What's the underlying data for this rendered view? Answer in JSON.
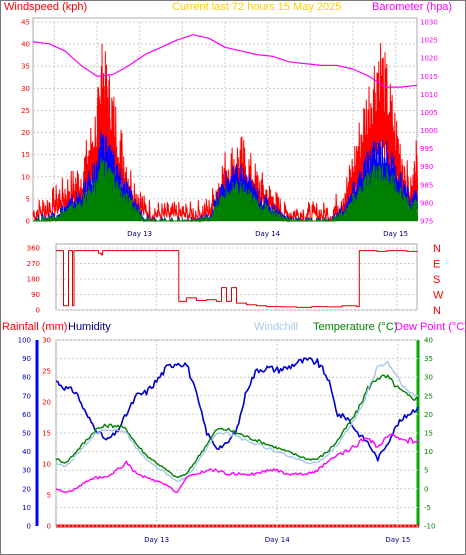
{
  "chart_data": [
    {
      "type": "line",
      "title": "Current last 72 hours 15 May 2025",
      "left_label": "Windspeed (kph)",
      "right_label": "Barometer (hpa)",
      "left_ticks": [
        "0",
        "5",
        "10",
        "15",
        "20",
        "25",
        "30",
        "35",
        "40",
        "45"
      ],
      "right_ticks": [
        "975",
        "980",
        "985",
        "990",
        "995",
        "1000",
        "1005",
        "1010",
        "1015",
        "1020",
        "1025",
        "1030"
      ],
      "ylim_left": [
        0,
        45
      ],
      "ylim_right": [
        975,
        1030
      ],
      "grid": true,
      "series": [
        {
          "name": "Windspeed (kph)",
          "color": "#ff0000",
          "role": "gust",
          "x": [
            0,
            3,
            6,
            9,
            12,
            13,
            15,
            18,
            21,
            24,
            27,
            30,
            33,
            36,
            39,
            42,
            45,
            47,
            50,
            53,
            56,
            59,
            62,
            65,
            68,
            71,
            72
          ],
          "values": [
            2,
            4,
            7,
            10,
            22,
            33,
            24,
            10,
            3,
            2,
            2,
            2,
            3,
            12,
            15,
            9,
            5,
            2,
            2,
            2,
            2,
            8,
            22,
            36,
            20,
            6,
            15
          ]
        },
        {
          "name": "average",
          "color": "#0000ff",
          "role": "avg",
          "x": [
            0,
            3,
            6,
            9,
            12,
            13,
            15,
            18,
            21,
            24,
            27,
            30,
            33,
            36,
            39,
            42,
            45,
            47,
            50,
            53,
            56,
            59,
            62,
            65,
            68,
            71,
            72
          ],
          "values": [
            0,
            1,
            3,
            6,
            12,
            18,
            14,
            6,
            1,
            0,
            0,
            0,
            1,
            9,
            11,
            6,
            3,
            1,
            0,
            0,
            0,
            4,
            12,
            17,
            12,
            4,
            6
          ]
        },
        {
          "name": "Barometer (hpa)",
          "color": "#ff00ff",
          "role": "baro",
          "axis": "right",
          "x": [
            0,
            3,
            6,
            9,
            12,
            15,
            18,
            21,
            24,
            27,
            30,
            33,
            36,
            39,
            42,
            45,
            48,
            51,
            54,
            57,
            60,
            63,
            66,
            69,
            72
          ],
          "values": [
            1024.5,
            1024,
            1022,
            1018,
            1015,
            1015.5,
            1018,
            1021,
            1023,
            1025,
            1026.5,
            1025.5,
            1023,
            1022,
            1021,
            1020.5,
            1019,
            1018.5,
            1018,
            1018,
            1017,
            1015,
            1012,
            1012,
            1012.5
          ]
        }
      ],
      "x_ticks": [
        "Day 13",
        "Day 14",
        "Day 15"
      ]
    },
    {
      "type": "line",
      "title": "",
      "left_ticks": [
        "0",
        "90",
        "180",
        "270",
        "360"
      ],
      "right_ticks": [
        "N",
        "W",
        "S",
        "E",
        "N"
      ],
      "ylim_left": [
        0,
        360
      ],
      "series": [
        {
          "name": "Wind direction",
          "color": "#dd0000",
          "x": [
            0,
            1,
            1.5,
            2,
            2.5,
            3,
            3.3,
            3.6,
            7,
            8,
            8.5,
            9,
            9.3,
            24,
            24.5,
            26,
            28,
            30,
            32,
            33,
            34,
            35,
            36,
            38,
            40,
            42,
            45,
            48,
            51,
            54,
            57,
            60,
            60.5,
            62,
            64,
            66,
            68,
            70,
            72
          ],
          "values": [
            345,
            345,
            25,
            25,
            345,
            345,
            25,
            345,
            345,
            345,
            330,
            320,
            345,
            345,
            50,
            70,
            55,
            60,
            50,
            130,
            50,
            130,
            40,
            30,
            25,
            20,
            18,
            15,
            20,
            18,
            25,
            20,
            345,
            345,
            340,
            345,
            345,
            340,
            335
          ]
        }
      ],
      "x_ticks": []
    },
    {
      "type": "line",
      "title": "",
      "labels": {
        "rain": "Rainfall (mm)",
        "humidity": "Humidity",
        "windchill": "Windchill",
        "temp": "Temperature (°C)",
        "dew": "Dew Point (°C)"
      },
      "humidity_ticks": [
        "0",
        "10",
        "20",
        "30",
        "40",
        "50",
        "60",
        "70",
        "80",
        "90",
        "100"
      ],
      "rain_ticks": [
        "0",
        "5",
        "10",
        "15",
        "20",
        "25",
        "30"
      ],
      "temp_ticks": [
        "-10",
        "-5",
        "0",
        "5",
        "10",
        "15",
        "20",
        "25",
        "30",
        "35",
        "40"
      ],
      "ylim_humidity": [
        0,
        100
      ],
      "ylim_temp": [
        -10,
        40
      ],
      "series": [
        {
          "name": "Humidity",
          "color": "#0000cc",
          "axis": "humidity",
          "x": [
            0,
            2,
            4,
            6,
            8,
            10,
            12,
            14,
            16,
            18,
            20,
            22,
            24,
            26,
            28,
            30,
            32,
            34,
            36,
            38,
            40,
            42,
            44,
            46,
            48,
            50,
            52,
            54,
            56,
            58,
            60,
            62,
            64,
            66,
            68,
            70,
            72
          ],
          "values": [
            78,
            74,
            72,
            60,
            52,
            46,
            50,
            60,
            70,
            72,
            78,
            85,
            88,
            87,
            70,
            50,
            42,
            44,
            52,
            74,
            84,
            85,
            84,
            85,
            88,
            89,
            88,
            80,
            60,
            58,
            50,
            45,
            36,
            45,
            55,
            60,
            64
          ]
        },
        {
          "name": "Temperature (°C)",
          "color": "#008000",
          "axis": "temp",
          "x": [
            0,
            2,
            4,
            6,
            8,
            10,
            12,
            14,
            16,
            18,
            20,
            22,
            24,
            26,
            28,
            30,
            32,
            34,
            36,
            38,
            40,
            42,
            44,
            46,
            48,
            50,
            52,
            54,
            56,
            58,
            60,
            62,
            64,
            66,
            68,
            70,
            72
          ],
          "values": [
            8,
            7,
            10,
            13,
            16,
            17,
            17,
            16,
            12,
            9,
            7,
            5,
            3,
            4,
            8,
            12,
            16,
            16,
            15,
            14,
            13,
            12,
            11,
            10,
            9,
            8,
            8,
            10,
            13,
            17,
            21,
            27,
            30,
            30,
            27,
            25,
            24
          ]
        },
        {
          "name": "Windchill",
          "color": "#a8c8e8",
          "axis": "temp",
          "x": [
            0,
            2,
            4,
            6,
            8,
            10,
            12,
            14,
            16,
            18,
            20,
            22,
            24,
            26,
            28,
            30,
            32,
            34,
            36,
            38,
            40,
            42,
            44,
            46,
            48,
            50,
            52,
            54,
            56,
            58,
            60,
            62,
            64,
            66,
            68,
            70,
            72
          ],
          "values": [
            7,
            6,
            9,
            12,
            15,
            16,
            16,
            15,
            11,
            8,
            6,
            4,
            2,
            3,
            7,
            11,
            15,
            15,
            14,
            13,
            12,
            11,
            10,
            9,
            8,
            7,
            7,
            9,
            12,
            16,
            20,
            26,
            33,
            34,
            30,
            26,
            25
          ]
        },
        {
          "name": "Dew Point (°C)",
          "color": "#ff00ff",
          "axis": "temp",
          "x": [
            0,
            2,
            4,
            6,
            8,
            10,
            12,
            14,
            16,
            18,
            20,
            22,
            24,
            26,
            28,
            30,
            32,
            34,
            36,
            38,
            40,
            42,
            44,
            46,
            48,
            50,
            52,
            54,
            56,
            58,
            60,
            62,
            64,
            66,
            68,
            70,
            72
          ],
          "values": [
            0,
            -1,
            0,
            2,
            3,
            3,
            5,
            7,
            4,
            3,
            2,
            1,
            -1,
            3,
            4,
            5,
            5,
            4,
            4,
            4,
            4,
            5,
            5,
            4,
            4,
            4,
            5,
            7,
            9,
            10,
            12,
            14,
            11,
            14,
            14,
            13,
            13
          ]
        },
        {
          "name": "Rainfall (mm)",
          "color": "#ff0000",
          "axis": "rain",
          "x": [
            0,
            72
          ],
          "values": [
            0,
            0
          ]
        }
      ],
      "x_ticks": [
        "Day 13",
        "Day 14",
        "Day 15"
      ]
    }
  ]
}
